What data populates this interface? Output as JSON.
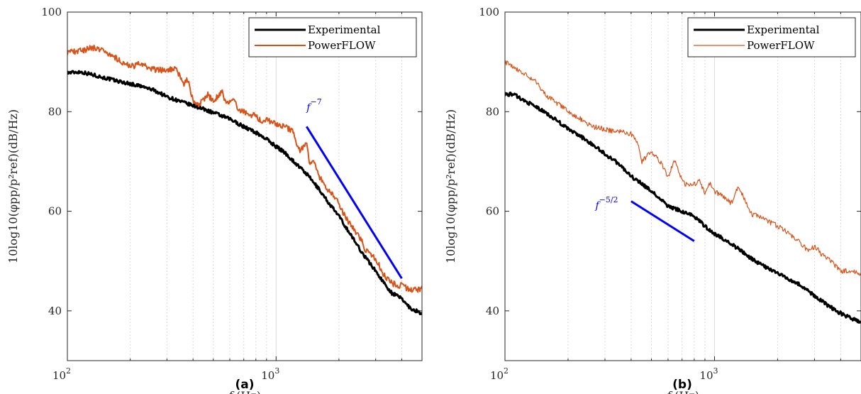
{
  "colors": {
    "experimental": "#000000",
    "powerflow": "#d95319",
    "slope": "#0000ff",
    "grid": "#d4d4d4",
    "axis": "#262626"
  },
  "chart_data": [
    {
      "id": "a",
      "caption": "(a)",
      "type": "line",
      "xscale": "log",
      "xlim": [
        100,
        5000
      ],
      "ylim": [
        30,
        100
      ],
      "xticks": [
        100,
        1000
      ],
      "xtick_labels": [
        {
          "base": "10",
          "exp": "2"
        },
        {
          "base": "10",
          "exp": "3"
        }
      ],
      "yticks": [
        40,
        60,
        80,
        100
      ],
      "ytick_labels": [
        "40",
        "60",
        "80",
        "100"
      ],
      "xlabel": {
        "sym": "f",
        "unit": " (Hz)"
      },
      "ylabel": "10log10(φpp/p²ref)(dB/Hz)",
      "grid": "x-major-minor",
      "legend_position": "top-right",
      "series": [
        {
          "name": "Experimental",
          "color": "#000000",
          "width": 3,
          "noise": 0.35,
          "x": [
            100,
            115,
            130,
            150,
            180,
            220,
            260,
            300,
            350,
            400,
            450,
            500,
            600,
            700,
            800,
            900,
            1000,
            1100,
            1200,
            1400,
            1600,
            1800,
            2000,
            2300,
            2600,
            3000,
            3300,
            3600,
            4000,
            4400,
            5000
          ],
          "y": [
            87.8,
            88.0,
            87.5,
            86.8,
            86.0,
            85.2,
            84.3,
            83.0,
            82.0,
            81.2,
            80.5,
            79.8,
            78.5,
            77.0,
            75.8,
            74.5,
            73.0,
            71.8,
            70.2,
            67.5,
            64.5,
            61.5,
            59.0,
            55.0,
            51.5,
            48.0,
            45.5,
            43.5,
            42.5,
            40.5,
            39.5
          ]
        },
        {
          "name": "PowerFLOW",
          "color": "#d95319",
          "width": 2,
          "noise": 0.6,
          "x": [
            100,
            115,
            130,
            145,
            160,
            180,
            200,
            220,
            240,
            260,
            300,
            330,
            360,
            380,
            400,
            430,
            470,
            500,
            550,
            580,
            620,
            680,
            750,
            800,
            850,
            900,
            1000,
            1100,
            1200,
            1300,
            1400,
            1450,
            1500,
            1600,
            1800,
            2000,
            2200,
            2500,
            2700,
            3000,
            3300,
            3600,
            4000,
            4500,
            5000
          ],
          "y": [
            92.0,
            92.2,
            92.8,
            92.6,
            91.5,
            90.2,
            89.0,
            89.5,
            89.0,
            88.5,
            88.2,
            88.8,
            85.5,
            86.5,
            82.0,
            81.5,
            83.5,
            82.0,
            84.0,
            81.5,
            82.2,
            80.0,
            79.5,
            79.0,
            78.0,
            78.5,
            77.5,
            77.0,
            76.0,
            72.0,
            73.5,
            69.0,
            70.5,
            67.0,
            64.0,
            61.5,
            58.0,
            55.0,
            52.0,
            50.5,
            47.0,
            45.5,
            45.0,
            44.0,
            44.5
          ]
        }
      ],
      "slope_line": {
        "label_base": "f",
        "label_exp": "−7",
        "x": [
          1400,
          4000
        ],
        "y": [
          77,
          46.5
        ],
        "label_at": [
          1400,
          80.2
        ]
      }
    },
    {
      "id": "b",
      "caption": "(b)",
      "type": "line",
      "xscale": "log",
      "xlim": [
        100,
        5000
      ],
      "ylim": [
        30,
        100
      ],
      "xticks": [
        100,
        1000
      ],
      "xtick_labels": [
        {
          "base": "10",
          "exp": "2"
        },
        {
          "base": "10",
          "exp": "3"
        }
      ],
      "yticks": [
        40,
        60,
        80,
        100
      ],
      "ytick_labels": [
        "40",
        "60",
        "80",
        "100"
      ],
      "xlabel": {
        "sym": "f",
        "unit": " (Hz)"
      },
      "ylabel": "10log10(φpp/p²ref)(dB/Hz)",
      "grid": "x-major-minor",
      "legend_position": "top-right",
      "series": [
        {
          "name": "Experimental",
          "color": "#000000",
          "width": 3,
          "noise": 0.35,
          "x": [
            100,
            110,
            120,
            140,
            160,
            180,
            200,
            230,
            260,
            300,
            350,
            400,
            450,
            500,
            550,
            600,
            700,
            800,
            900,
            1000,
            1200,
            1500,
            1800,
            2000,
            2500,
            3000,
            3500,
            4000,
            4500,
            5000
          ],
          "y": [
            83.5,
            83.5,
            82.5,
            81.0,
            79.5,
            78.0,
            76.5,
            75.0,
            73.5,
            71.5,
            69.5,
            67.0,
            65.5,
            64.0,
            62.5,
            61.0,
            60.0,
            59.0,
            57.0,
            55.5,
            53.5,
            50.5,
            48.5,
            47.5,
            45.5,
            43.0,
            41.0,
            39.5,
            38.5,
            37.5
          ]
        },
        {
          "name": "PowerFLOW",
          "color": "#d95319",
          "width": 1.2,
          "noise": 0.5,
          "x": [
            100,
            110,
            120,
            140,
            160,
            180,
            200,
            230,
            260,
            300,
            330,
            360,
            400,
            430,
            450,
            500,
            550,
            600,
            650,
            700,
            750,
            800,
            850,
            900,
            950,
            1000,
            1100,
            1200,
            1300,
            1500,
            1800,
            2000,
            2200,
            2500,
            2800,
            3000,
            3300,
            3600,
            4000,
            4500,
            5000
          ],
          "y": [
            90.0,
            89.0,
            88.0,
            86.0,
            83.0,
            81.5,
            80.0,
            78.5,
            77.0,
            76.5,
            76.0,
            76.0,
            75.5,
            74.0,
            70.0,
            72.0,
            70.0,
            67.0,
            70.5,
            66.0,
            65.0,
            65.5,
            66.0,
            63.5,
            65.5,
            64.0,
            63.0,
            61.5,
            65.0,
            59.5,
            58.0,
            57.0,
            56.0,
            54.0,
            52.0,
            53.0,
            51.0,
            50.0,
            48.0,
            48.0,
            47.5
          ]
        }
      ],
      "slope_line": {
        "label_base": "f",
        "label_exp": "−5/2",
        "x": [
          400,
          800
        ],
        "y": [
          62,
          54
        ],
        "label_at": [
          270,
          60.5
        ]
      }
    }
  ]
}
